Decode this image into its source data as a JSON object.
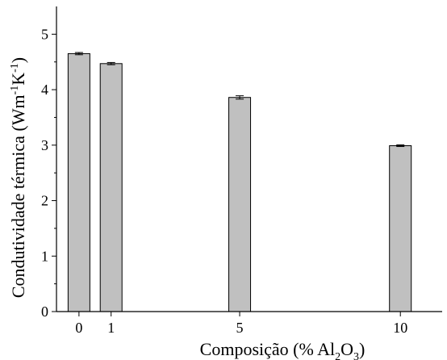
{
  "chart_data": {
    "type": "bar",
    "title": "",
    "xlabel": {
      "base": "Composição (% Al",
      "sub1": "2",
      "mid": "O",
      "sub2": "3",
      "end": ")"
    },
    "ylabel": {
      "base": "Condutividade térmica (Wm",
      "sup1": "-1",
      "mid": "K",
      "sup2": "-1",
      "end": ")"
    },
    "x": [
      0,
      1,
      5,
      10
    ],
    "x_tick_labels": [
      "0",
      "1",
      "5",
      "10"
    ],
    "values": [
      4.65,
      4.47,
      3.86,
      2.99
    ],
    "errors": [
      0.02,
      0.02,
      0.03,
      0.015
    ],
    "xlim": [
      -0.7,
      11.3
    ],
    "ylim": [
      0,
      5.5
    ],
    "y_ticks": [
      0,
      1,
      2,
      3,
      4,
      5
    ],
    "y_tick_labels": [
      "0",
      "1",
      "2",
      "3",
      "4",
      "5"
    ],
    "grid": false,
    "colors": {
      "bar_fill": "#c0c0c0",
      "bar_stroke": "#000000",
      "axis": "#000000"
    }
  }
}
